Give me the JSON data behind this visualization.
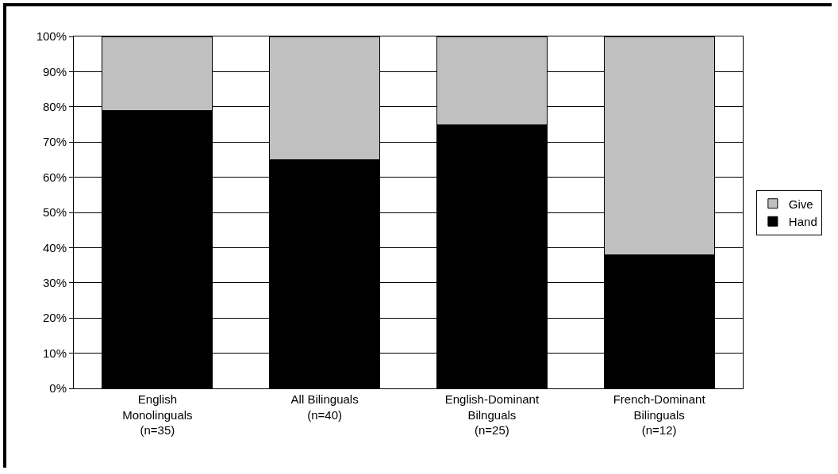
{
  "chart_data": {
    "type": "bar",
    "stacked": true,
    "categories": [
      "English\nMonolinguals\n(n=35)",
      "All Bilinguals\n(n=40)",
      "English-Dominant\nBilnguals\n(n=25)",
      "French-Dominant\nBilinguals\n(n=12)"
    ],
    "series": [
      {
        "name": "Hand",
        "color": "#000000",
        "values": [
          79,
          65,
          75,
          38
        ]
      },
      {
        "name": "Give",
        "color": "#c0c0c0",
        "values": [
          21,
          35,
          25,
          62
        ]
      }
    ],
    "ylim": [
      0,
      100
    ],
    "yticks": [
      {
        "value": 0,
        "label": "0%"
      },
      {
        "value": 10,
        "label": "10%"
      },
      {
        "value": 20,
        "label": "20%"
      },
      {
        "value": 30,
        "label": "30%"
      },
      {
        "value": 40,
        "label": "40%"
      },
      {
        "value": 50,
        "label": "50%"
      },
      {
        "value": 60,
        "label": "60%"
      },
      {
        "value": 70,
        "label": "70%"
      },
      {
        "value": 80,
        "label": "80%"
      },
      {
        "value": 90,
        "label": "90%"
      },
      {
        "value": 100,
        "label": "100%"
      }
    ],
    "grid": "y",
    "legend": "right"
  }
}
